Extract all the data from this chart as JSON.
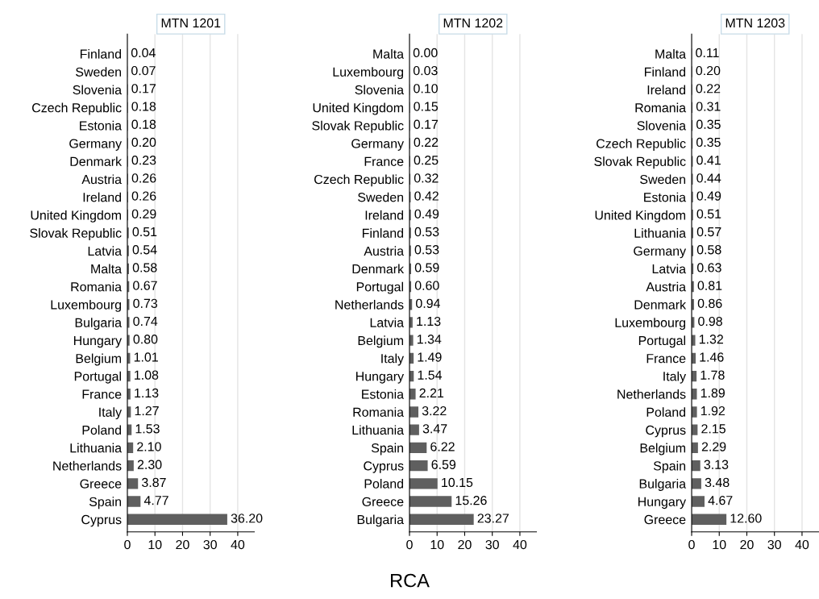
{
  "chart_data": [
    {
      "type": "bar",
      "orientation": "horizontal",
      "title": "MTN 1201",
      "color": "#5f5f5f",
      "grid": "x",
      "xlim": [
        0,
        46
      ],
      "xticks": [
        0,
        10,
        20,
        30,
        40
      ],
      "categories": [
        "Finland",
        "Sweden",
        "Slovenia",
        "Czech Republic",
        "Estonia",
        "Germany",
        "Denmark",
        "Austria",
        "Ireland",
        "United Kingdom",
        "Slovak Republic",
        "Latvia",
        "Malta",
        "Romania",
        "Luxembourg",
        "Bulgaria",
        "Hungary",
        "Belgium",
        "Portugal",
        "France",
        "Italy",
        "Poland",
        "Lithuania",
        "Netherlands",
        "Greece",
        "Spain",
        "Cyprus"
      ],
      "values": [
        0.04,
        0.07,
        0.17,
        0.18,
        0.18,
        0.2,
        0.23,
        0.26,
        0.26,
        0.29,
        0.51,
        0.54,
        0.58,
        0.67,
        0.73,
        0.74,
        0.8,
        1.01,
        1.08,
        1.13,
        1.27,
        1.53,
        2.1,
        2.3,
        3.87,
        4.77,
        36.2
      ],
      "value_labels": [
        "0.04",
        "0.07",
        "0.17",
        "0.18",
        "0.18",
        "0.20",
        "0.23",
        "0.26",
        "0.26",
        "0.29",
        "0.51",
        "0.54",
        "0.58",
        "0.67",
        "0.73",
        "0.74",
        "0.80",
        "1.01",
        "1.08",
        "1.13",
        "1.27",
        "1.53",
        "2.10",
        "2.30",
        "3.87",
        "4.77",
        "36.20"
      ]
    },
    {
      "type": "bar",
      "orientation": "horizontal",
      "title": "MTN 1202",
      "xlabel": "RCA",
      "color": "#5f5f5f",
      "grid": "x",
      "xlim": [
        0,
        46
      ],
      "xticks": [
        0,
        10,
        20,
        30,
        40
      ],
      "categories": [
        "Malta",
        "Luxembourg",
        "Slovenia",
        "United Kingdom",
        "Slovak Republic",
        "Germany",
        "France",
        "Czech Republic",
        "Sweden",
        "Ireland",
        "Finland",
        "Austria",
        "Denmark",
        "Portugal",
        "Netherlands",
        "Latvia",
        "Belgium",
        "Italy",
        "Hungary",
        "Estonia",
        "Romania",
        "Lithuania",
        "Spain",
        "Cyprus",
        "Poland",
        "Greece",
        "Bulgaria"
      ],
      "values": [
        0.0,
        0.03,
        0.1,
        0.15,
        0.17,
        0.22,
        0.25,
        0.32,
        0.42,
        0.49,
        0.53,
        0.53,
        0.59,
        0.6,
        0.94,
        1.13,
        1.34,
        1.49,
        1.54,
        2.21,
        3.22,
        3.47,
        6.22,
        6.59,
        10.15,
        15.26,
        23.27
      ],
      "value_labels": [
        "0.00",
        "0.03",
        "0.10",
        "0.15",
        "0.17",
        "0.22",
        "0.25",
        "0.32",
        "0.42",
        "0.49",
        "0.53",
        "0.53",
        "0.59",
        "0.60",
        "0.94",
        "1.13",
        "1.34",
        "1.49",
        "1.54",
        "2.21",
        "3.22",
        "3.47",
        "6.22",
        "6.59",
        "10.15",
        "15.26",
        "23.27"
      ]
    },
    {
      "type": "bar",
      "orientation": "horizontal",
      "title": "MTN 1203",
      "color": "#5f5f5f",
      "grid": "x",
      "xlim": [
        0,
        46
      ],
      "xticks": [
        0,
        10,
        20,
        30,
        40
      ],
      "categories": [
        "Malta",
        "Finland",
        "Ireland",
        "Romania",
        "Slovenia",
        "Czech Republic",
        "Slovak Republic",
        "Sweden",
        "Estonia",
        "United Kingdom",
        "Lithuania",
        "Germany",
        "Latvia",
        "Austria",
        "Denmark",
        "Luxembourg",
        "Portugal",
        "France",
        "Italy",
        "Netherlands",
        "Poland",
        "Cyprus",
        "Belgium",
        "Spain",
        "Bulgaria",
        "Hungary",
        "Greece"
      ],
      "values": [
        0.11,
        0.2,
        0.22,
        0.31,
        0.35,
        0.35,
        0.41,
        0.44,
        0.49,
        0.51,
        0.57,
        0.58,
        0.63,
        0.81,
        0.86,
        0.98,
        1.32,
        1.46,
        1.78,
        1.89,
        1.92,
        2.15,
        2.29,
        3.13,
        3.48,
        4.67,
        12.6
      ],
      "value_labels": [
        "0.11",
        "0.20",
        "0.22",
        "0.31",
        "0.35",
        "0.35",
        "0.41",
        "0.44",
        "0.49",
        "0.51",
        "0.57",
        "0.58",
        "0.63",
        "0.81",
        "0.86",
        "0.98",
        "1.32",
        "1.46",
        "1.78",
        "1.89",
        "1.92",
        "2.15",
        "2.29",
        "3.13",
        "3.48",
        "4.67",
        "12.60"
      ]
    }
  ]
}
